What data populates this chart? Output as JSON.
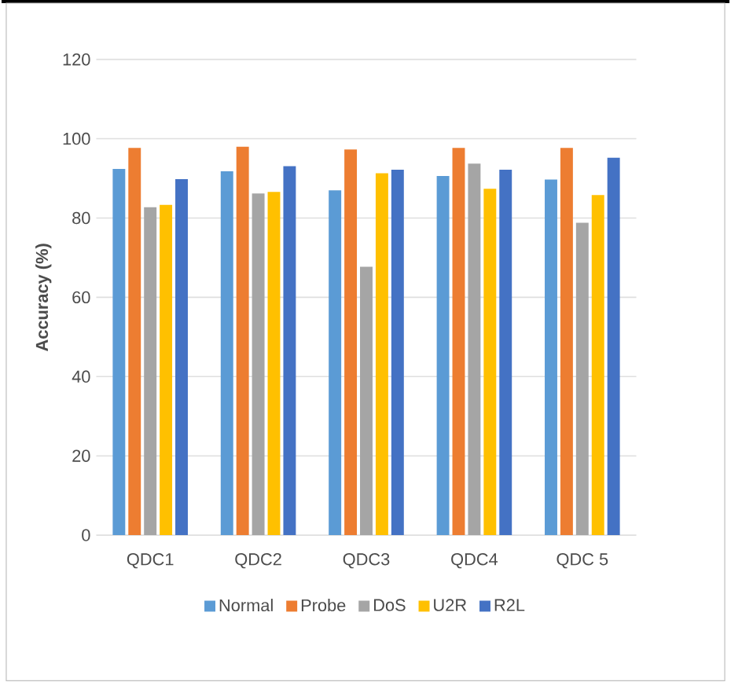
{
  "chart_data": {
    "type": "bar",
    "ylabel": "Accuracy (%)",
    "categories": [
      "QDC1",
      "QDC2",
      "QDC3",
      "QDC4",
      "QDC 5"
    ],
    "series": [
      {
        "name": "Normal",
        "color": "#5b9bd5",
        "values": [
          92.4,
          91.8,
          87.0,
          90.6,
          89.7
        ]
      },
      {
        "name": "Probe",
        "color": "#ed7d31",
        "values": [
          97.7,
          98.0,
          97.3,
          97.7,
          97.7
        ]
      },
      {
        "name": "DoS",
        "color": "#a5a5a5",
        "values": [
          82.7,
          86.2,
          67.7,
          93.7,
          78.8
        ]
      },
      {
        "name": "U2R",
        "color": "#ffc000",
        "values": [
          83.3,
          86.6,
          91.3,
          87.4,
          85.8
        ]
      },
      {
        "name": "R2L",
        "color": "#4472c4",
        "values": [
          89.8,
          93.1,
          92.2,
          92.2,
          95.2
        ]
      }
    ],
    "ylim": [
      0,
      120
    ],
    "yticks": [
      0,
      20,
      40,
      60,
      80,
      100,
      120
    ],
    "grid": "y",
    "legend": "bottom"
  }
}
